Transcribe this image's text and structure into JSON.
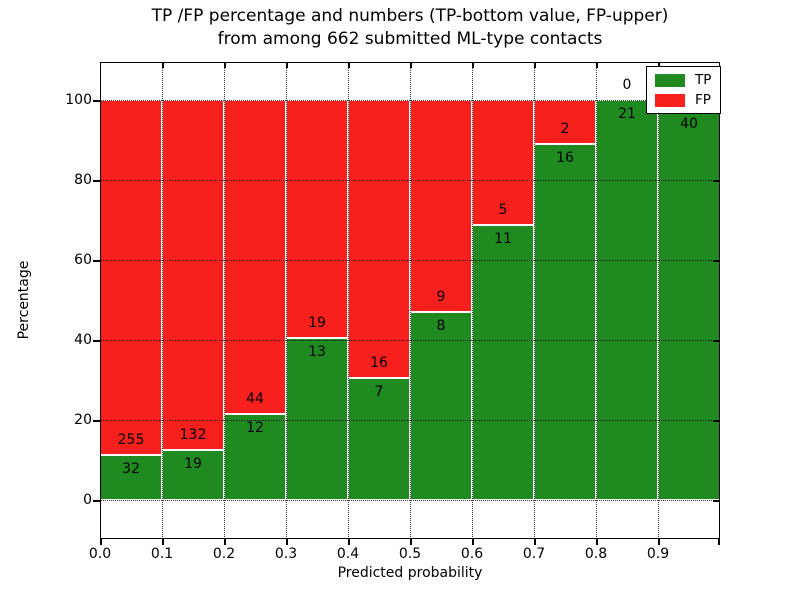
{
  "chart_data": {
    "type": "bar",
    "variant": "stacked-percentage",
    "title_lines": [
      "TP /FP percentage and numbers (TP-bottom value, FP-upper)",
      "from among 662 submitted ML-type contacts"
    ],
    "xlabel": "Predicted probability",
    "ylabel": "Percentage",
    "total_contacts": 662,
    "xlim": [
      0.0,
      1.0
    ],
    "ylim_pct_shown": [
      0,
      100
    ],
    "grid": true,
    "x_tick_labels": [
      "0.0",
      "0.1",
      "0.2",
      "0.3",
      "0.4",
      "0.5",
      "0.6",
      "0.7",
      "0.8",
      "0.9"
    ],
    "y_ticks": [
      0,
      20,
      40,
      60,
      80,
      100
    ],
    "y_tick_labels": [
      "0",
      "20",
      "40",
      "60",
      "80",
      "100"
    ],
    "categories": [
      "0.0-0.1",
      "0.1-0.2",
      "0.2-0.3",
      "0.3-0.4",
      "0.4-0.5",
      "0.5-0.6",
      "0.6-0.7",
      "0.7-0.8",
      "0.8-0.9",
      "0.9-1.0"
    ],
    "series": [
      {
        "name": "TP",
        "color": "#1f8a1f",
        "values": [
          32,
          19,
          12,
          13,
          7,
          8,
          11,
          16,
          21,
          40
        ]
      },
      {
        "name": "FP",
        "color": "#f8201c",
        "values": [
          255,
          132,
          44,
          19,
          16,
          9,
          5,
          2,
          0,
          1
        ]
      }
    ],
    "fp_label_visible": [
      true,
      true,
      true,
      true,
      true,
      true,
      true,
      true,
      true,
      false
    ],
    "colors": {
      "tp": "#1f8a1f",
      "fp": "#f8201c",
      "bar_edge": "#ffffff",
      "text": "#000000"
    },
    "legend": {
      "location": "upper right",
      "entries": [
        {
          "label": "TP",
          "color": "#1f8a1f"
        },
        {
          "label": "FP",
          "color": "#f8201c"
        }
      ]
    }
  }
}
